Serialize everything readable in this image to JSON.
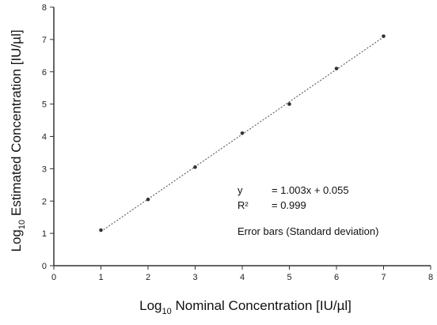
{
  "chart_data": {
    "type": "scatter",
    "xlabel": {
      "prefix": "Log",
      "sub": "10",
      "suffix": " Nominal Concentration [IU/µl]"
    },
    "ylabel": {
      "prefix": "Log",
      "sub": "10",
      "suffix": " Estimated Concentration [IU/µl]"
    },
    "xlim": [
      0,
      8
    ],
    "ylim": [
      0,
      8
    ],
    "xticks": [
      0,
      1,
      2,
      3,
      4,
      5,
      6,
      7,
      8
    ],
    "yticks": [
      0,
      1,
      2,
      3,
      4,
      5,
      6,
      7,
      8
    ],
    "grid": false,
    "series": [
      {
        "x": [
          1,
          2,
          3,
          4,
          5,
          6,
          7
        ],
        "y": [
          1.1,
          2.05,
          3.05,
          4.1,
          5.0,
          6.1,
          7.1
        ]
      }
    ],
    "fit_line": {
      "slope": 1.003,
      "intercept": 0.055,
      "x_range": [
        1,
        7
      ]
    },
    "annotations": {
      "equation_lhs": "y",
      "equation_rhs": "= 1.003x + 0.055",
      "r2_lhs": "R²",
      "r2_rhs": "= 0.999",
      "note": "Error bars (Standard deviation)"
    },
    "colors": {
      "axis": "#333333",
      "line": "#666666",
      "point": "#333333"
    }
  }
}
